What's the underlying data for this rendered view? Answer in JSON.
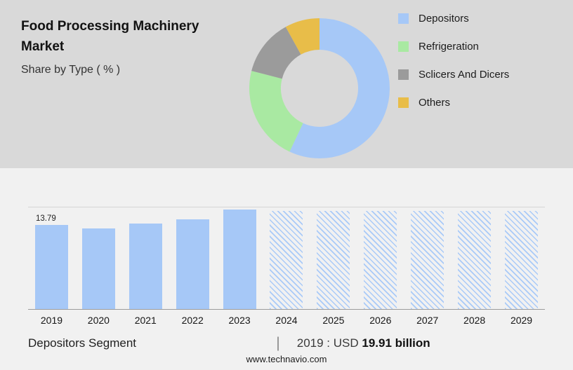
{
  "header": {
    "title": "Food Processing Machinery Market",
    "subtitle": "Share by Type ( % )"
  },
  "legend": {
    "items": [
      {
        "label": "Depositors",
        "color": "#a6c8f7"
      },
      {
        "label": "Refrigeration",
        "color": "#a9e9a2"
      },
      {
        "label": "Sclicers And Dicers",
        "color": "#9b9b9b"
      },
      {
        "label": "Others",
        "color": "#e8bd49"
      }
    ]
  },
  "chart_data": [
    {
      "type": "pie",
      "variant": "donut",
      "title": "Share by Type ( % )",
      "labels": [
        "Depositors",
        "Refrigeration",
        "Sclicers And Dicers",
        "Others"
      ],
      "values": [
        57,
        22,
        13,
        8
      ],
      "unit": "%",
      "colors": [
        "#a6c8f7",
        "#a9e9a2",
        "#9b9b9b",
        "#e8bd49"
      ],
      "legend_position": "right"
    },
    {
      "type": "bar",
      "categories": [
        "2019",
        "2020",
        "2021",
        "2022",
        "2023",
        "2024",
        "2025",
        "2026",
        "2027",
        "2028",
        "2029"
      ],
      "values": [
        13.79,
        13.2,
        14.0,
        14.7,
        16.4,
        16.1,
        16.1,
        16.1,
        16.1,
        16.1,
        16.1
      ],
      "value_labels": [
        "13.79",
        "",
        "",
        "",
        "",
        "",
        "",
        "",
        "",
        "",
        ""
      ],
      "forecast_from_index": 5,
      "forecast_style": "hatched",
      "bar_color": "#a6c8f7",
      "ylim": [
        0,
        16.7
      ],
      "grid": "top-line-only",
      "xlabel": "",
      "ylabel": ""
    }
  ],
  "footer": {
    "segment": "Depositors Segment",
    "divider": "|",
    "value_prefix": "2019 : USD",
    "value_bold": "19.91 billion",
    "website": "www.technavio.com"
  },
  "colors": {
    "top_bg": "#d9d9d9",
    "bottom_bg": "#f1f1f1",
    "bar_blue": "#a6c8f7"
  }
}
